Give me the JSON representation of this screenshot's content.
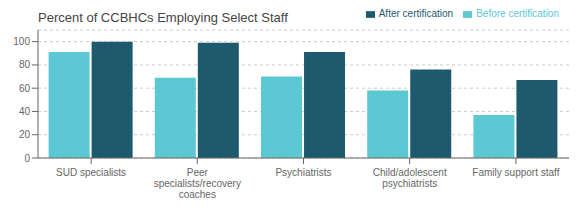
{
  "chart_data": {
    "type": "bar",
    "title": "Percent of CCBHCs Employing Select Staff",
    "categories": [
      "SUD specialists",
      "Peer\nspecialists/recovery\ncoaches",
      "Psychiatrists",
      "Child/adolescent\npsychiatrists",
      "Family support staff"
    ],
    "series": [
      {
        "name": "Before certification",
        "color": "#5bc8d4",
        "values": [
          91,
          69,
          70,
          58,
          37
        ]
      },
      {
        "name": "After certification",
        "color": "#1e5a6e",
        "values": [
          100,
          99,
          91,
          76,
          67
        ]
      }
    ],
    "ylim": [
      0,
      110
    ],
    "yticks": [
      0,
      20,
      40,
      60,
      80,
      100
    ],
    "grid": true,
    "legend": "upper right"
  }
}
